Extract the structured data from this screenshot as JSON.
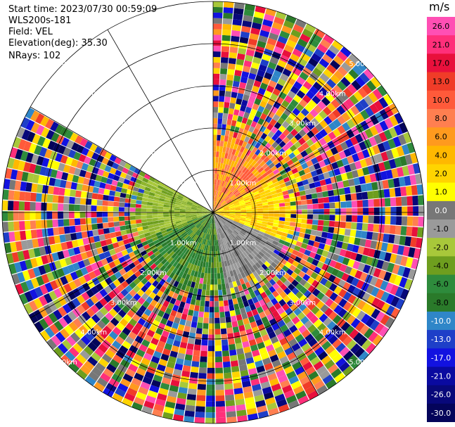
{
  "header": {
    "start_time": "Start time: 2023/07/30 00:59:09",
    "instrument": "WLS200s-181",
    "field": "Field: VEL",
    "elevation": "Elevation(deg): 35.30",
    "nrays": "NRays: 102"
  },
  "chart_data": {
    "type": "heatmap",
    "projection": "polar PPI",
    "field": "VEL",
    "units": "m/s",
    "range_rings_km": [
      1.0,
      2.0,
      3.0,
      4.0,
      5.0
    ],
    "ring_labels": [
      "1.00km",
      "2.00km",
      "3.00km",
      "4.00km",
      "5.00km"
    ],
    "max_range_km": 5.0,
    "spoke_azimuths_deg": [
      0,
      30,
      60,
      90,
      120,
      150,
      180,
      210,
      240,
      270,
      300,
      330
    ],
    "missing_sector_deg": [
      300,
      360
    ],
    "near_field": {
      "nw_sector": "olive green (-2 to -4 m/s)",
      "ne_sector": "orange (8 to 13 m/s)",
      "east": "yellow (2 to 6 m/s)",
      "se_sector": "gray (0 to -1 m/s)",
      "south_sw": "green (-4 to -8 m/s)"
    },
    "far_field": "noise (mixed colors across full scale)"
  },
  "colorbar": {
    "title": "m/s",
    "ticks": [
      "26.0",
      "21.0",
      "17.0",
      "13.0",
      "10.0",
      "8.0",
      "6.0",
      "4.0",
      "2.0",
      "1.0",
      "0.0",
      "-1.0",
      "-2.0",
      "-4.0",
      "-6.0",
      "-8.0",
      "-10.0",
      "-13.0",
      "-17.0",
      "-21.0",
      "-26.0",
      "-30.0"
    ],
    "colors": [
      "#ff4fb4",
      "#ff2f7a",
      "#e8103c",
      "#f03c28",
      "#ff5a3a",
      "#ff7f50",
      "#ff9a1e",
      "#ffb800",
      "#ffd400",
      "#ffff00",
      "#777777",
      "#9a9a9a",
      "#a8c83a",
      "#6e9e1e",
      "#2e8b3c",
      "#2a7a2a",
      "#2f86c8",
      "#1e3fc8",
      "#1212e0",
      "#0a0aa0",
      "#08087a",
      "#04045a"
    ]
  }
}
